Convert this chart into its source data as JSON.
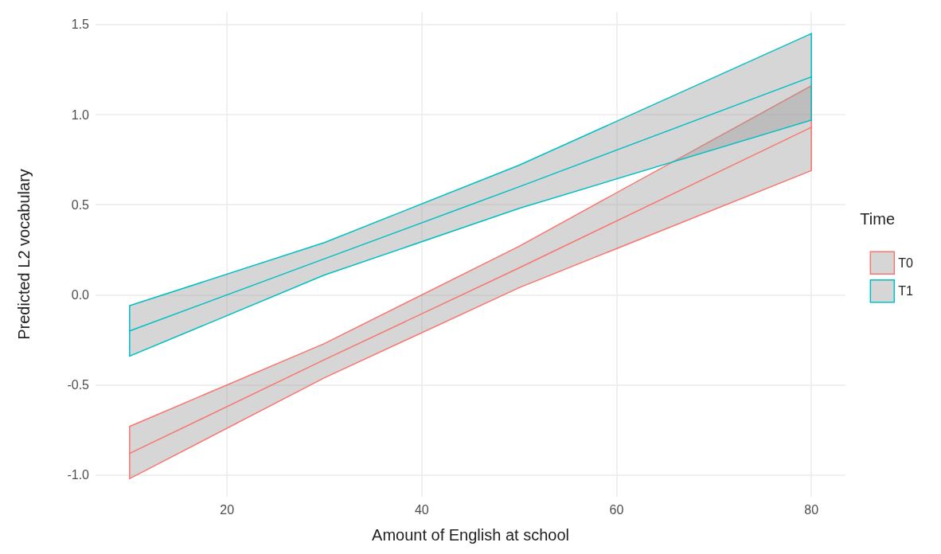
{
  "chart_data": {
    "type": "line",
    "xlabel": "Amount of English at school",
    "ylabel": "Predicted L2 vocabulary",
    "legend_title": "Time",
    "x": [
      10,
      30,
      50,
      80
    ],
    "series": [
      {
        "name": "T0",
        "color": "#f8766d",
        "values": [
          -0.88,
          -0.36,
          0.15,
          0.93
        ],
        "lower": [
          -1.02,
          -0.46,
          0.04,
          0.69
        ],
        "upper": [
          -0.73,
          -0.27,
          0.27,
          1.16
        ]
      },
      {
        "name": "T1",
        "color": "#00bfc4",
        "values": [
          -0.2,
          0.2,
          0.6,
          1.21
        ],
        "lower": [
          -0.34,
          0.11,
          0.48,
          0.97
        ],
        "upper": [
          -0.06,
          0.29,
          0.72,
          1.45
        ]
      }
    ],
    "xlim": [
      6.5,
      83.5
    ],
    "xticks": [
      20,
      40,
      60,
      80
    ],
    "ylim": [
      -1.12,
      1.57
    ],
    "yticks": [
      {
        "value": -1,
        "label": "-1.0"
      },
      {
        "value": -0.5,
        "label": "-0.5"
      },
      {
        "value": 0,
        "label": "0.0"
      },
      {
        "value": 0.5,
        "label": "0.5"
      },
      {
        "value": 1,
        "label": "1.0"
      },
      {
        "value": 1.5,
        "label": "1.5"
      }
    ],
    "grid": true,
    "legend": "right",
    "marker": "none",
    "line_style": "solid"
  }
}
